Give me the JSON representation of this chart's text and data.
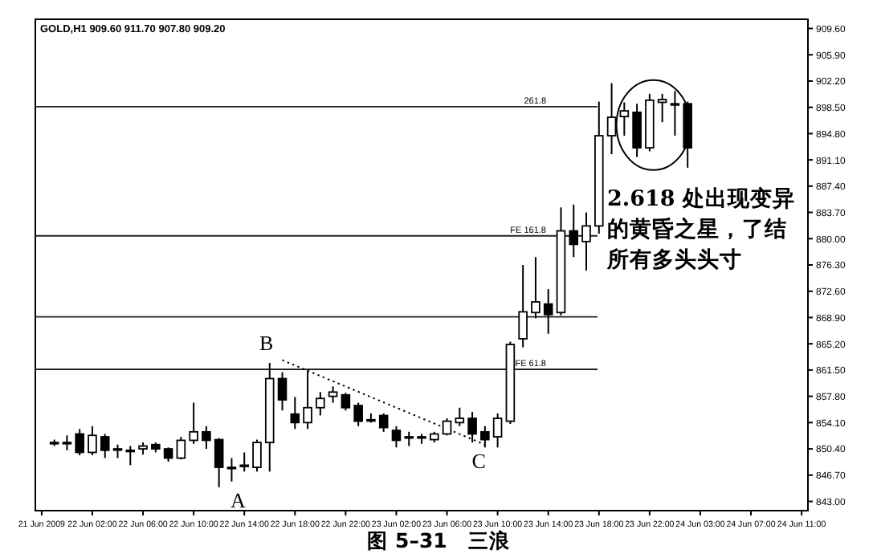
{
  "chart_data": {
    "type": "candlestick",
    "title": "图 5–31　三浪",
    "subtitle": "GOLD,H1 909.60 911.70 907.80 909.20",
    "categories": [
      "21 Jun 2009",
      null,
      null,
      null,
      "22 Jun 02:00",
      null,
      null,
      null,
      "22 Jun 06:00",
      null,
      null,
      null,
      "22 Jun 10:00",
      null,
      null,
      null,
      "22 Jun 14:00",
      null,
      null,
      null,
      "22 Jun 18:00",
      null,
      null,
      null,
      "22 Jun 22:00",
      null,
      null,
      null,
      "23 Jun 02:00",
      null,
      null,
      null,
      "23 Jun 06:00",
      null,
      null,
      null,
      "23 Jun 10:00",
      null,
      null,
      null,
      "23 Jun 14:00",
      null,
      null,
      null,
      "23 Jun 18:00",
      null,
      null,
      null,
      "23 Jun 22:00",
      null,
      null,
      null,
      "24 Jun 03:00",
      null,
      null,
      null,
      "24 Jun 07:00",
      null,
      null,
      null,
      "24 Jun 11:00"
    ],
    "ohlc": [
      null,
      [
        851.3,
        851.7,
        850.8,
        851.3
      ],
      [
        851.3,
        852.3,
        850.2,
        851.3
      ],
      [
        852.5,
        853.2,
        849.5,
        849.9
      ],
      [
        849.9,
        853.6,
        849.5,
        852.3
      ],
      [
        852.1,
        852.5,
        849.1,
        850.2
      ],
      [
        850.4,
        851.0,
        849.1,
        850.4
      ],
      [
        850.2,
        850.8,
        848.1,
        850.2
      ],
      [
        850.4,
        851.3,
        849.6,
        850.8
      ],
      [
        851.0,
        851.3,
        849.9,
        850.4
      ],
      [
        850.4,
        850.6,
        848.6,
        849.1
      ],
      [
        849.1,
        852.1,
        848.9,
        851.6
      ],
      [
        851.6,
        856.9,
        851.1,
        852.8
      ],
      [
        852.8,
        853.6,
        850.4,
        851.6
      ],
      [
        851.7,
        851.9,
        845.0,
        847.8
      ],
      [
        847.8,
        849.1,
        845.8,
        847.8
      ],
      [
        848.1,
        849.9,
        847.2,
        848.1
      ],
      [
        847.8,
        851.7,
        847.2,
        851.3
      ],
      [
        851.3,
        862.5,
        847.2,
        860.3
      ],
      [
        860.3,
        861.2,
        855.8,
        857.3
      ],
      [
        855.3,
        857.7,
        853.2,
        854.1
      ],
      [
        854.1,
        861.4,
        853.2,
        856.2
      ],
      [
        856.2,
        858.4,
        855.1,
        857.5
      ],
      [
        857.8,
        859.2,
        856.9,
        858.4
      ],
      [
        858.0,
        858.3,
        855.8,
        856.2
      ],
      [
        856.5,
        856.9,
        853.6,
        854.3
      ],
      [
        854.5,
        855.4,
        854.1,
        854.5
      ],
      [
        855.1,
        855.4,
        852.8,
        853.4
      ],
      [
        853.0,
        853.6,
        850.6,
        851.6
      ],
      [
        852.1,
        852.8,
        850.8,
        852.1
      ],
      [
        852.1,
        852.5,
        851.1,
        852.1
      ],
      [
        851.7,
        852.8,
        851.3,
        852.5
      ],
      [
        852.5,
        854.7,
        852.3,
        854.3
      ],
      [
        854.1,
        856.2,
        853.6,
        854.7
      ],
      [
        854.7,
        855.6,
        851.3,
        852.5
      ],
      [
        852.8,
        853.6,
        850.6,
        851.7
      ],
      [
        852.1,
        855.4,
        850.6,
        854.7
      ],
      [
        854.3,
        865.5,
        853.9,
        865.1
      ],
      [
        865.9,
        876.3,
        864.7,
        869.7
      ],
      [
        869.6,
        877.4,
        868.8,
        871.1
      ],
      [
        870.8,
        872.9,
        866.6,
        869.3
      ],
      [
        869.6,
        884.4,
        869.2,
        881.1
      ],
      [
        881.1,
        884.8,
        877.4,
        879.2
      ],
      [
        879.6,
        883.7,
        875.5,
        881.8
      ],
      [
        881.8,
        899.3,
        880.7,
        894.5
      ],
      [
        894.5,
        901.9,
        891.9,
        897.1
      ],
      [
        897.2,
        899.2,
        894.5,
        898.0
      ],
      [
        897.8,
        899.0,
        891.5,
        892.8
      ],
      [
        892.8,
        900.4,
        892.3,
        899.5
      ],
      [
        899.2,
        900.4,
        896.4,
        899.6
      ],
      [
        899.0,
        900.8,
        894.5,
        899.0
      ],
      [
        899.0,
        899.3,
        890.0,
        892.8
      ],
      null,
      null,
      null,
      null,
      null,
      null,
      null,
      null,
      null
    ],
    "series": [
      {
        "type": "line",
        "values": [
          null,
          null,
          null,
          null,
          null,
          null,
          null,
          null,
          null,
          null,
          null,
          null,
          null,
          null,
          null,
          null,
          null,
          null,
          null,
          862.9,
          null,
          null,
          null,
          null,
          null,
          null,
          null,
          null,
          null,
          null,
          null,
          null,
          null,
          null,
          null,
          851.0,
          null,
          null,
          null,
          null,
          null,
          null,
          null,
          null,
          null,
          null,
          null,
          null,
          null,
          null,
          null,
          null,
          null,
          null,
          null,
          null,
          null,
          null,
          null,
          null,
          null
        ],
        "color": "#000000",
        "line_style": "dotted"
      }
    ],
    "ylim": [
      841.7,
      910.9
    ],
    "yticks": [
      {
        "value": 843.0,
        "label": "843.00"
      },
      {
        "value": 846.7,
        "label": "846.70"
      },
      {
        "value": 850.4,
        "label": "850.40"
      },
      {
        "value": 854.1,
        "label": "854.10"
      },
      {
        "value": 857.8,
        "label": "857.80"
      },
      {
        "value": 861.5,
        "label": "861.50"
      },
      {
        "value": 865.2,
        "label": "865.20"
      },
      {
        "value": 868.9,
        "label": "868.90"
      },
      {
        "value": 872.6,
        "label": "872.60"
      },
      {
        "value": 876.3,
        "label": "876.30"
      },
      {
        "value": 880.0,
        "label": "880.00"
      },
      {
        "value": 883.7,
        "label": "883.70"
      },
      {
        "value": 887.4,
        "label": "887.40"
      },
      {
        "value": 891.1,
        "label": "891.10"
      },
      {
        "value": 894.8,
        "label": "894.80"
      },
      {
        "value": 898.5,
        "label": "898.50"
      },
      {
        "value": 902.2,
        "label": "902.20"
      },
      {
        "value": 905.9,
        "label": "905.90"
      },
      {
        "value": 909.6,
        "label": "909.60"
      }
    ],
    "ref_lines": [
      {
        "axis": "y",
        "value": 898.6
      },
      {
        "axis": "y",
        "value": 880.4
      },
      {
        "axis": "y",
        "value": 869.0
      },
      {
        "axis": "y",
        "value": 861.6
      }
    ],
    "annotations": [
      {
        "text": "261.8",
        "y": 898.6
      },
      {
        "text": "FE 161.8",
        "y": 880.4
      },
      {
        "text": "FE 61.8",
        "y": 861.6
      },
      {
        "text": "A",
        "y": 845.8
      },
      {
        "text": "B",
        "y": 862.5
      },
      {
        "text": "C",
        "y": 851.3
      },
      "2.618 处出现变异的黄昏之星，了结所有多头头寸"
    ]
  }
}
